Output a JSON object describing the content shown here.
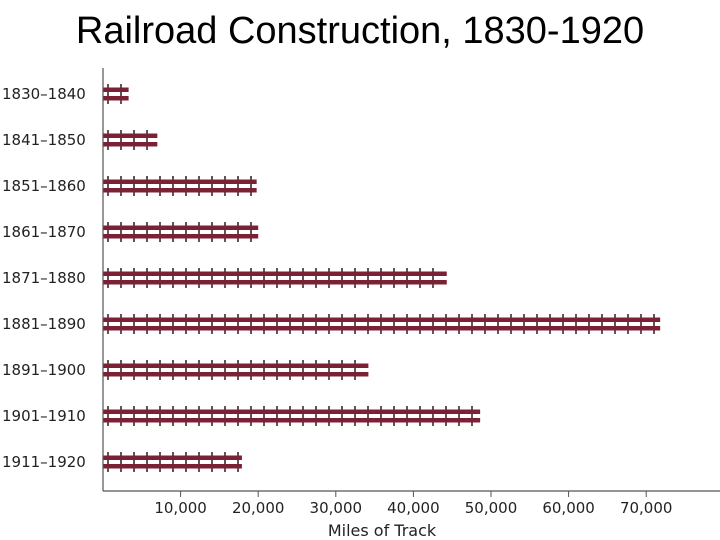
{
  "chart_data": {
    "type": "bar",
    "orientation": "horizontal",
    "title": "Railroad Construction, 1830-1920",
    "xlabel": "Miles of Track",
    "ylabel": "",
    "categories": [
      "1830–1840",
      "1841–1850",
      "1851–1860",
      "1861–1870",
      "1871–1880",
      "1881–1890",
      "1891–1900",
      "1901–1910",
      "1911–1920"
    ],
    "values": [
      3300,
      7000,
      19800,
      20000,
      44300,
      71800,
      34200,
      48600,
      17900
    ],
    "xlim": [
      0,
      79000
    ],
    "xticks": [
      "10,000",
      "20,000",
      "30,000",
      "40,000",
      "50,000",
      "60,000",
      "70,000"
    ],
    "bar_style": "railroad track",
    "colors": {
      "rail": "#7b2035",
      "tie": "#3a2a2e"
    },
    "grid": false
  }
}
